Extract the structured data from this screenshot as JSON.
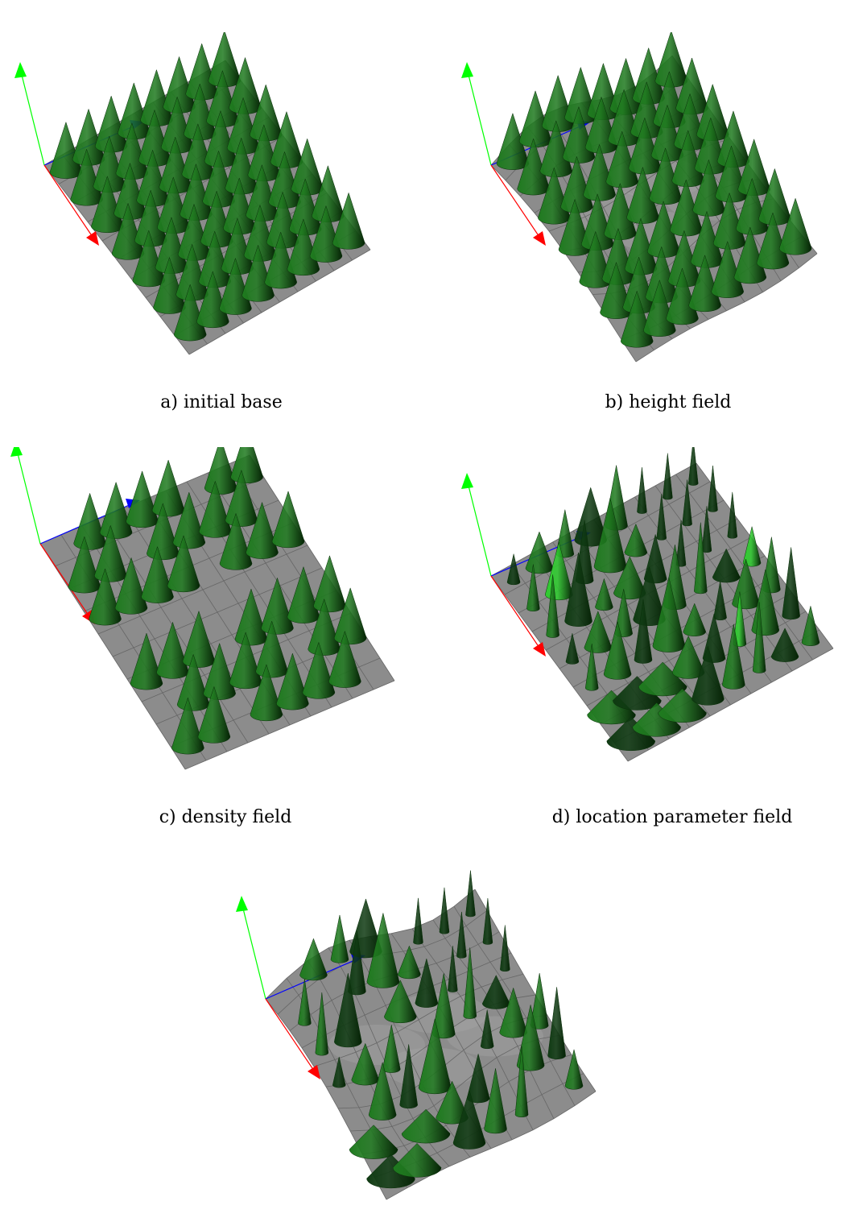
{
  "figure": {
    "panels": [
      {
        "id": "a",
        "caption": "a)  initial base",
        "terrain": "flat",
        "trees": "uniform-grid"
      },
      {
        "id": "b",
        "caption": "b)  height field",
        "terrain": "wavy",
        "trees": "uniform-grid"
      },
      {
        "id": "c",
        "caption": "c)  density field",
        "terrain": "flat",
        "trees": "sparse-grid"
      },
      {
        "id": "d",
        "caption": "d)  location parameter field",
        "terrain": "flat",
        "trees": "varied-sizes-colors"
      },
      {
        "id": "e",
        "caption": "",
        "terrain": "wavy",
        "trees": "varied-sparse"
      }
    ],
    "colors": {
      "ground": "#8c8c8c",
      "grid_line": "#666666",
      "tree": "#1f7a1f",
      "tree_dark": "#0f3a12",
      "tree_light": "#2ecc2e",
      "axis_x": "#ff0000",
      "axis_y": "#00ff00",
      "axis_z": "#0000ff"
    }
  }
}
